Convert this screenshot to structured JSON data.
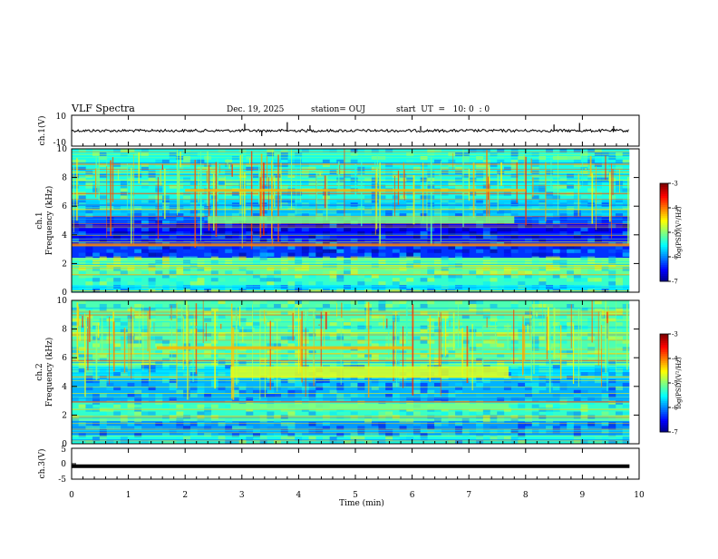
{
  "chart_data": {
    "type": "heatmap",
    "title": "VLF Spectra",
    "date": "Dec. 19, 2025",
    "station": "station= OUJ",
    "start_ut": "start  UT  =   10: 0  : 0",
    "xlabel": "Time  (min)",
    "xlim": [
      0,
      10
    ],
    "x_ticks": [
      "0",
      "1",
      "2",
      "3",
      "4",
      "5",
      "6",
      "7",
      "8",
      "9",
      "10"
    ],
    "panels": [
      {
        "id": "ch1-waveform",
        "type": "line",
        "ylabel": "ch.1(V)",
        "ylim": [
          -10,
          10
        ],
        "y_ticks": [
          "10",
          "-10"
        ],
        "baseline": 0,
        "spikes": [
          {
            "t": 3.05,
            "v": 4.5
          },
          {
            "t": 3.35,
            "v": -3.5
          },
          {
            "t": 3.8,
            "v": 5.5
          },
          {
            "t": 4.2,
            "v": 3.5
          },
          {
            "t": 6.15,
            "v": 3.0
          },
          {
            "t": 8.5,
            "v": 4.0
          },
          {
            "t": 8.95,
            "v": 5.0
          },
          {
            "t": 9.55,
            "v": 3.0
          }
        ]
      },
      {
        "id": "ch1-spectrogram",
        "type": "heatmap",
        "ylabel": "ch.1\nFrequency (kHz)",
        "ylim": [
          0,
          10
        ],
        "y_ticks": [
          "0",
          "2",
          "4",
          "6",
          "8",
          "10"
        ],
        "data_end_min": 9.83,
        "bands": [
          {
            "from": 0.0,
            "to": 0.5,
            "level": -5.6
          },
          {
            "from": 0.5,
            "to": 1.2,
            "level": -5.3
          },
          {
            "from": 1.2,
            "to": 2.4,
            "level": -5.1
          },
          {
            "from": 2.4,
            "to": 3.6,
            "level": -6.3
          },
          {
            "from": 3.6,
            "to": 4.8,
            "level": -6.5
          },
          {
            "from": 4.8,
            "to": 5.3,
            "level": -6.2
          },
          {
            "from": 5.3,
            "to": 6.5,
            "level": -5.7
          },
          {
            "from": 6.5,
            "to": 10.0,
            "level": -5.4
          }
        ],
        "features": [
          {
            "t0": 2.4,
            "t1": 7.8,
            "f0": 4.8,
            "f1": 5.3,
            "level": -5.0
          },
          {
            "t0": 2.0,
            "t1": 8.0,
            "f0": 7.0,
            "f1": 7.2,
            "level": -4.2
          },
          {
            "t0": 0.0,
            "t1": 9.83,
            "f0": 3.2,
            "f1": 3.4,
            "level": -4.0
          }
        ],
        "colorbar": {
          "label": "log(PSD)(V²/Hz)",
          "ticks": [
            "-3",
            "-4",
            "-5",
            "-6",
            "-7"
          ],
          "range": [
            -7,
            -3
          ]
        }
      },
      {
        "id": "ch2-spectrogram",
        "type": "heatmap",
        "ylabel": "ch.2\nFrequency (kHz)",
        "ylim": [
          0,
          10
        ],
        "y_ticks": [
          "0",
          "2",
          "4",
          "6",
          "8",
          "10"
        ],
        "data_end_min": 9.83,
        "bands": [
          {
            "from": 0.0,
            "to": 0.6,
            "level": -5.4
          },
          {
            "from": 0.6,
            "to": 1.6,
            "level": -5.9
          },
          {
            "from": 1.6,
            "to": 2.9,
            "level": -5.3
          },
          {
            "from": 2.9,
            "to": 4.6,
            "level": -5.8
          },
          {
            "from": 4.6,
            "to": 5.4,
            "level": -5.6
          },
          {
            "from": 5.4,
            "to": 10.0,
            "level": -5.2
          }
        ],
        "features": [
          {
            "t0": 2.8,
            "t1": 7.7,
            "f0": 4.6,
            "f1": 5.4,
            "level": -4.6
          },
          {
            "t0": 2.8,
            "t1": 7.7,
            "f0": 2.4,
            "f1": 2.8,
            "level": -5.0
          },
          {
            "t0": 1.5,
            "t1": 6.0,
            "f0": 6.6,
            "f1": 6.8,
            "level": -4.2
          }
        ],
        "colorbar": {
          "label": "log(PSD)(V²/Hz)",
          "ticks": [
            "-3",
            "-4",
            "-5",
            "-6",
            "-7"
          ],
          "range": [
            -7,
            -3
          ]
        }
      },
      {
        "id": "ch3-waveform",
        "type": "line",
        "ylabel": "ch.3(V)",
        "ylim": [
          -5,
          5
        ],
        "y_ticks": [
          "5",
          "0",
          "-5"
        ],
        "baseline": -0.8
      }
    ]
  }
}
